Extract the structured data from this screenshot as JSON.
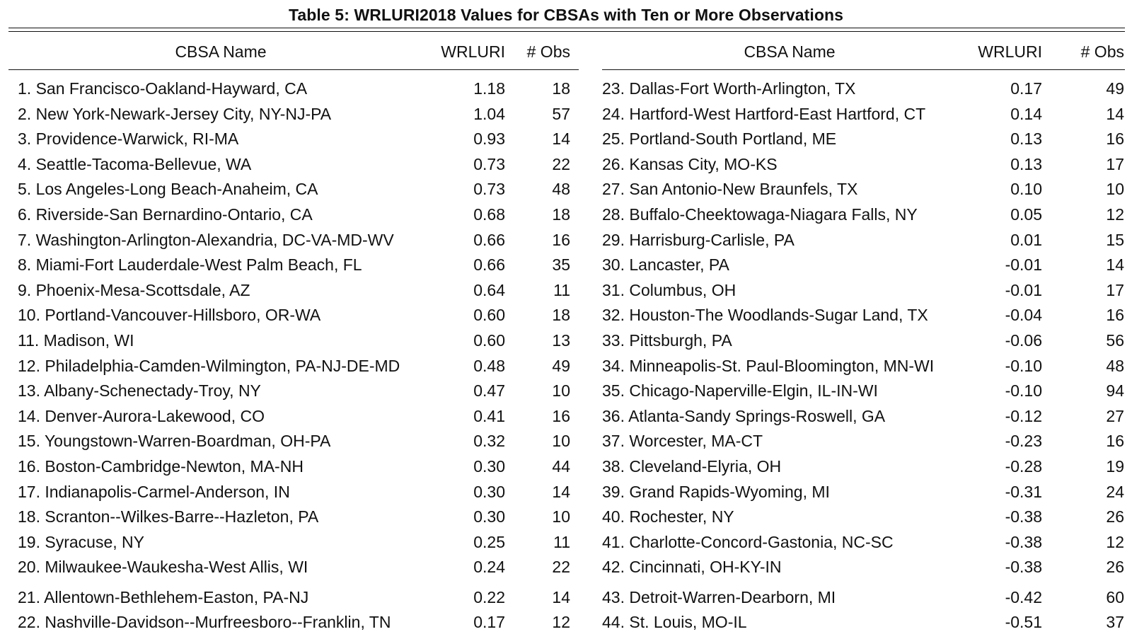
{
  "title": "Table 5: WRLURI2018 Values for CBSAs with Ten or More Observations",
  "columns": {
    "name": "CBSA Name",
    "value": "WRLURI",
    "obs": "# Obs"
  },
  "left_rows": [
    {
      "name": "1. San Francisco-Oakland-Hayward, CA",
      "wrluri": "1.18",
      "obs": "18"
    },
    {
      "name": "2. New York-Newark-Jersey City, NY-NJ-PA",
      "wrluri": "1.04",
      "obs": "57"
    },
    {
      "name": "3. Providence-Warwick, RI-MA",
      "wrluri": "0.93",
      "obs": "14"
    },
    {
      "name": "4. Seattle-Tacoma-Bellevue, WA",
      "wrluri": "0.73",
      "obs": "22"
    },
    {
      "name": "5. Los Angeles-Long Beach-Anaheim, CA",
      "wrluri": "0.73",
      "obs": "48"
    },
    {
      "name": "6. Riverside-San Bernardino-Ontario, CA",
      "wrluri": "0.68",
      "obs": "18"
    },
    {
      "name": "7. Washington-Arlington-Alexandria, DC-VA-MD-WV",
      "wrluri": "0.66",
      "obs": "16"
    },
    {
      "name": "8. Miami-Fort Lauderdale-West Palm Beach, FL",
      "wrluri": "0.66",
      "obs": "35"
    },
    {
      "name": "9. Phoenix-Mesa-Scottsdale, AZ",
      "wrluri": "0.64",
      "obs": "11"
    },
    {
      "name": "10. Portland-Vancouver-Hillsboro, OR-WA",
      "wrluri": "0.60",
      "obs": "18"
    },
    {
      "name": "11. Madison, WI",
      "wrluri": "0.60",
      "obs": "13"
    },
    {
      "name": "12. Philadelphia-Camden-Wilmington, PA-NJ-DE-MD",
      "wrluri": "0.48",
      "obs": "49"
    },
    {
      "name": "13. Albany-Schenectady-Troy, NY",
      "wrluri": "0.47",
      "obs": "10"
    },
    {
      "name": "14. Denver-Aurora-Lakewood, CO",
      "wrluri": "0.41",
      "obs": "16"
    },
    {
      "name": "15. Youngstown-Warren-Boardman, OH-PA",
      "wrluri": "0.32",
      "obs": "10"
    },
    {
      "name": "16. Boston-Cambridge-Newton, MA-NH",
      "wrluri": "0.30",
      "obs": "44"
    },
    {
      "name": "17. Indianapolis-Carmel-Anderson, IN",
      "wrluri": "0.30",
      "obs": "14"
    },
    {
      "name": "18. Scranton--Wilkes-Barre--Hazleton, PA",
      "wrluri": "0.30",
      "obs": "10"
    },
    {
      "name": "19. Syracuse, NY",
      "wrluri": "0.25",
      "obs": "11"
    },
    {
      "name": "20. Milwaukee-Waukesha-West Allis, WI",
      "wrluri": "0.24",
      "obs": "22"
    },
    {
      "name": "21. Allentown-Bethlehem-Easton, PA-NJ",
      "wrluri": "0.22",
      "obs": "14"
    },
    {
      "name": "22. Nashville-Davidson--Murfreesboro--Franklin, TN",
      "wrluri": "0.17",
      "obs": "12"
    }
  ],
  "right_rows": [
    {
      "name": "23. Dallas-Fort Worth-Arlington, TX",
      "wrluri": "0.17",
      "obs": "49"
    },
    {
      "name": "24. Hartford-West Hartford-East Hartford, CT",
      "wrluri": "0.14",
      "obs": "14"
    },
    {
      "name": "25. Portland-South Portland, ME",
      "wrluri": "0.13",
      "obs": "16"
    },
    {
      "name": "26. Kansas City, MO-KS",
      "wrluri": "0.13",
      "obs": "17"
    },
    {
      "name": "27. San Antonio-New Braunfels, TX",
      "wrluri": "0.10",
      "obs": "10"
    },
    {
      "name": "28. Buffalo-Cheektowaga-Niagara Falls, NY",
      "wrluri": "0.05",
      "obs": "12"
    },
    {
      "name": "29. Harrisburg-Carlisle, PA",
      "wrluri": "0.01",
      "obs": "15"
    },
    {
      "name": "30. Lancaster, PA",
      "wrluri": "-0.01",
      "obs": "14"
    },
    {
      "name": "31. Columbus, OH",
      "wrluri": "-0.01",
      "obs": "17"
    },
    {
      "name": "32. Houston-The Woodlands-Sugar Land, TX",
      "wrluri": "-0.04",
      "obs": "16"
    },
    {
      "name": "33. Pittsburgh, PA",
      "wrluri": "-0.06",
      "obs": "56"
    },
    {
      "name": "34. Minneapolis-St. Paul-Bloomington, MN-WI",
      "wrluri": "-0.10",
      "obs": "48"
    },
    {
      "name": "35. Chicago-Naperville-Elgin, IL-IN-WI",
      "wrluri": "-0.10",
      "obs": "94"
    },
    {
      "name": "36. Atlanta-Sandy Springs-Roswell, GA",
      "wrluri": "-0.12",
      "obs": "27"
    },
    {
      "name": "37. Worcester, MA-CT",
      "wrluri": "-0.23",
      "obs": "16"
    },
    {
      "name": "38. Cleveland-Elyria, OH",
      "wrluri": "-0.28",
      "obs": "19"
    },
    {
      "name": "39. Grand Rapids-Wyoming, MI",
      "wrluri": "-0.31",
      "obs": "24"
    },
    {
      "name": "40. Rochester, NY",
      "wrluri": "-0.38",
      "obs": "26"
    },
    {
      "name": "41. Charlotte-Concord-Gastonia, NC-SC",
      "wrluri": "-0.38",
      "obs": "12"
    },
    {
      "name": "42. Cincinnati, OH-KY-IN",
      "wrluri": "-0.38",
      "obs": "26"
    },
    {
      "name": "43. Detroit-Warren-Dearborn, MI",
      "wrluri": "-0.42",
      "obs": "60"
    },
    {
      "name": "44. St. Louis, MO-IL",
      "wrluri": "-0.51",
      "obs": "37"
    }
  ]
}
